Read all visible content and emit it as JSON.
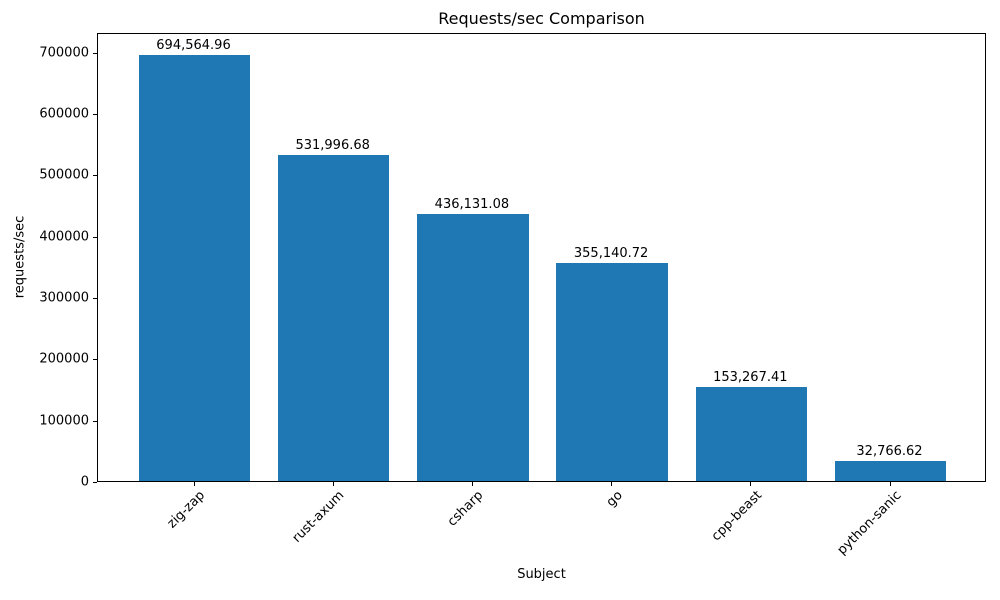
{
  "chart_data": {
    "type": "bar",
    "title": "Requests/sec Comparison",
    "xlabel": "Subject",
    "ylabel": "requests/sec",
    "categories": [
      "zig-zap",
      "rust-axum",
      "csharp",
      "go",
      "cpp-beast",
      "python-sanic"
    ],
    "values": [
      694564.96,
      531996.68,
      436131.08,
      355140.72,
      153267.41,
      32766.62
    ],
    "value_labels": [
      "694,564.96",
      "531,996.68",
      "436,131.08",
      "355,140.72",
      "153,267.41",
      "32,766.62"
    ],
    "ytick_values": [
      0,
      100000,
      200000,
      300000,
      400000,
      500000,
      600000,
      700000
    ],
    "ytick_labels": [
      "0",
      "100000",
      "200000",
      "300000",
      "400000",
      "500000",
      "600000",
      "700000"
    ],
    "ylim": [
      0,
      732345
    ],
    "xtick_rotation_deg": 45,
    "bar_color": "#1f77b4",
    "axis_color": "#000000",
    "background_color": "#ffffff",
    "grid": false
  }
}
